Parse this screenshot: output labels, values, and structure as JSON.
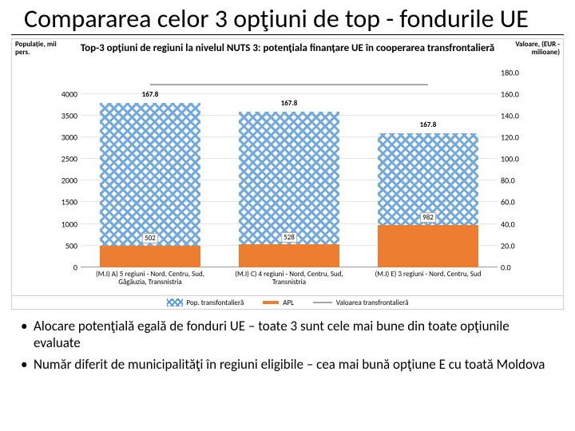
{
  "title": "Compararea celor 3 opţiuni de top  - fondurile UE",
  "chart": {
    "type": "combo-bar-line",
    "title": "Top-3 opţiuni de regiuni la nivelul NUTS 3: potenţiala finanţare UE în cooperarea transfrontalieră",
    "left_axis": {
      "label": "Populație,\nmii pers.",
      "min": 0,
      "max": 4500,
      "step": 500,
      "ticks": [
        "0",
        "500",
        "1000",
        "1500",
        "2000",
        "2500",
        "3000",
        "3500",
        "4000"
      ]
    },
    "right_axis": {
      "label": "Valoare,\n(EUR - milioane)",
      "min": 0,
      "max": 180,
      "step": 20,
      "ticks": [
        "0.0",
        "20.0",
        "40.0",
        "60.0",
        "80.0",
        "100.0",
        "120.0",
        "140.0",
        "160.0",
        "180.0"
      ]
    },
    "categories": [
      {
        "label": "(M.I) A) 5 regiuni - Nord, Centru, Sud, Găgăuzia, Transnistria",
        "pop": 3800,
        "apl": 502,
        "value": 167.8
      },
      {
        "label": "(M.I) C) 4 regiuni - Nord, Centru, Sud, Transnistria",
        "pop": 3600,
        "apl": 528,
        "value": 167.8
      },
      {
        "label": "(M.I) E) 3 regiuni - Nord, Centru, Sud",
        "pop": 3100,
        "apl": 982,
        "value": 167.8
      }
    ],
    "series_colors": {
      "pop": "#5b9bd5",
      "apl": "#ed7d31",
      "value": "#a5a5a5"
    },
    "legend": {
      "pop": "Pop. transfontalieră",
      "apl": "APL",
      "value": "Valoarea transfrontalieră"
    },
    "background_color": "#ffffff",
    "grid_color": "#e6e6e6",
    "bar_width_pct": 24
  },
  "bullets": [
    "Alocare potenţială egală de fonduri UE – toate 3 sunt cele mai bune din toate opţiunile evaluate",
    "Număr diferit de municipalităţi în regiuni eligibile – cea mai bună opţiune E cu toată Moldova"
  ]
}
